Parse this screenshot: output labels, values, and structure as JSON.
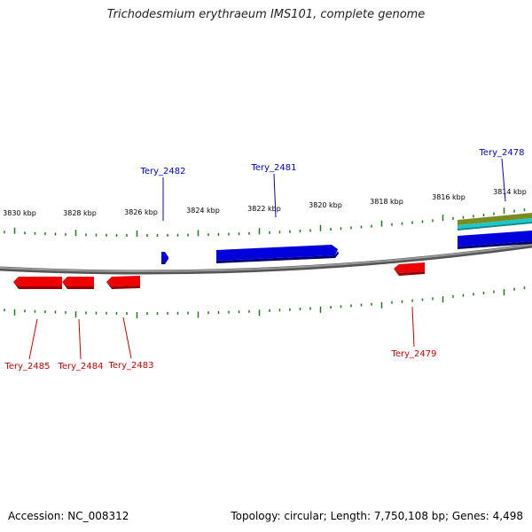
{
  "title": "Trichodesmium erythraeum IMS101, complete genome",
  "footer": {
    "accession": "Accession: NC_008312",
    "summary": "Topology: circular; Length: 7,750,108 bp; Genes: 4,498"
  },
  "colors": {
    "forward_gene": "#0000dd",
    "reverse_gene": "#ee0000",
    "tick": "#1d7a1d",
    "backbone": "#8a8a8a",
    "track_olive": "#7b8c1e",
    "track_cyan": "#19c9c9"
  },
  "ruler": {
    "labels": [
      "3830 kbp",
      "3828 kbp",
      "3826 kbp",
      "3824 kbp",
      "3822 kbp",
      "3820 kbp",
      "3818 kbp",
      "3816 kbp",
      "3814 kbp"
    ]
  },
  "genes": {
    "forward": [
      {
        "id": "Tery_2482"
      },
      {
        "id": "Tery_2481"
      },
      {
        "id": "Tery_2478"
      }
    ],
    "reverse": [
      {
        "id": "Tery_2485"
      },
      {
        "id": "Tery_2484"
      },
      {
        "id": "Tery_2483"
      },
      {
        "id": "Tery_2479"
      }
    ]
  }
}
